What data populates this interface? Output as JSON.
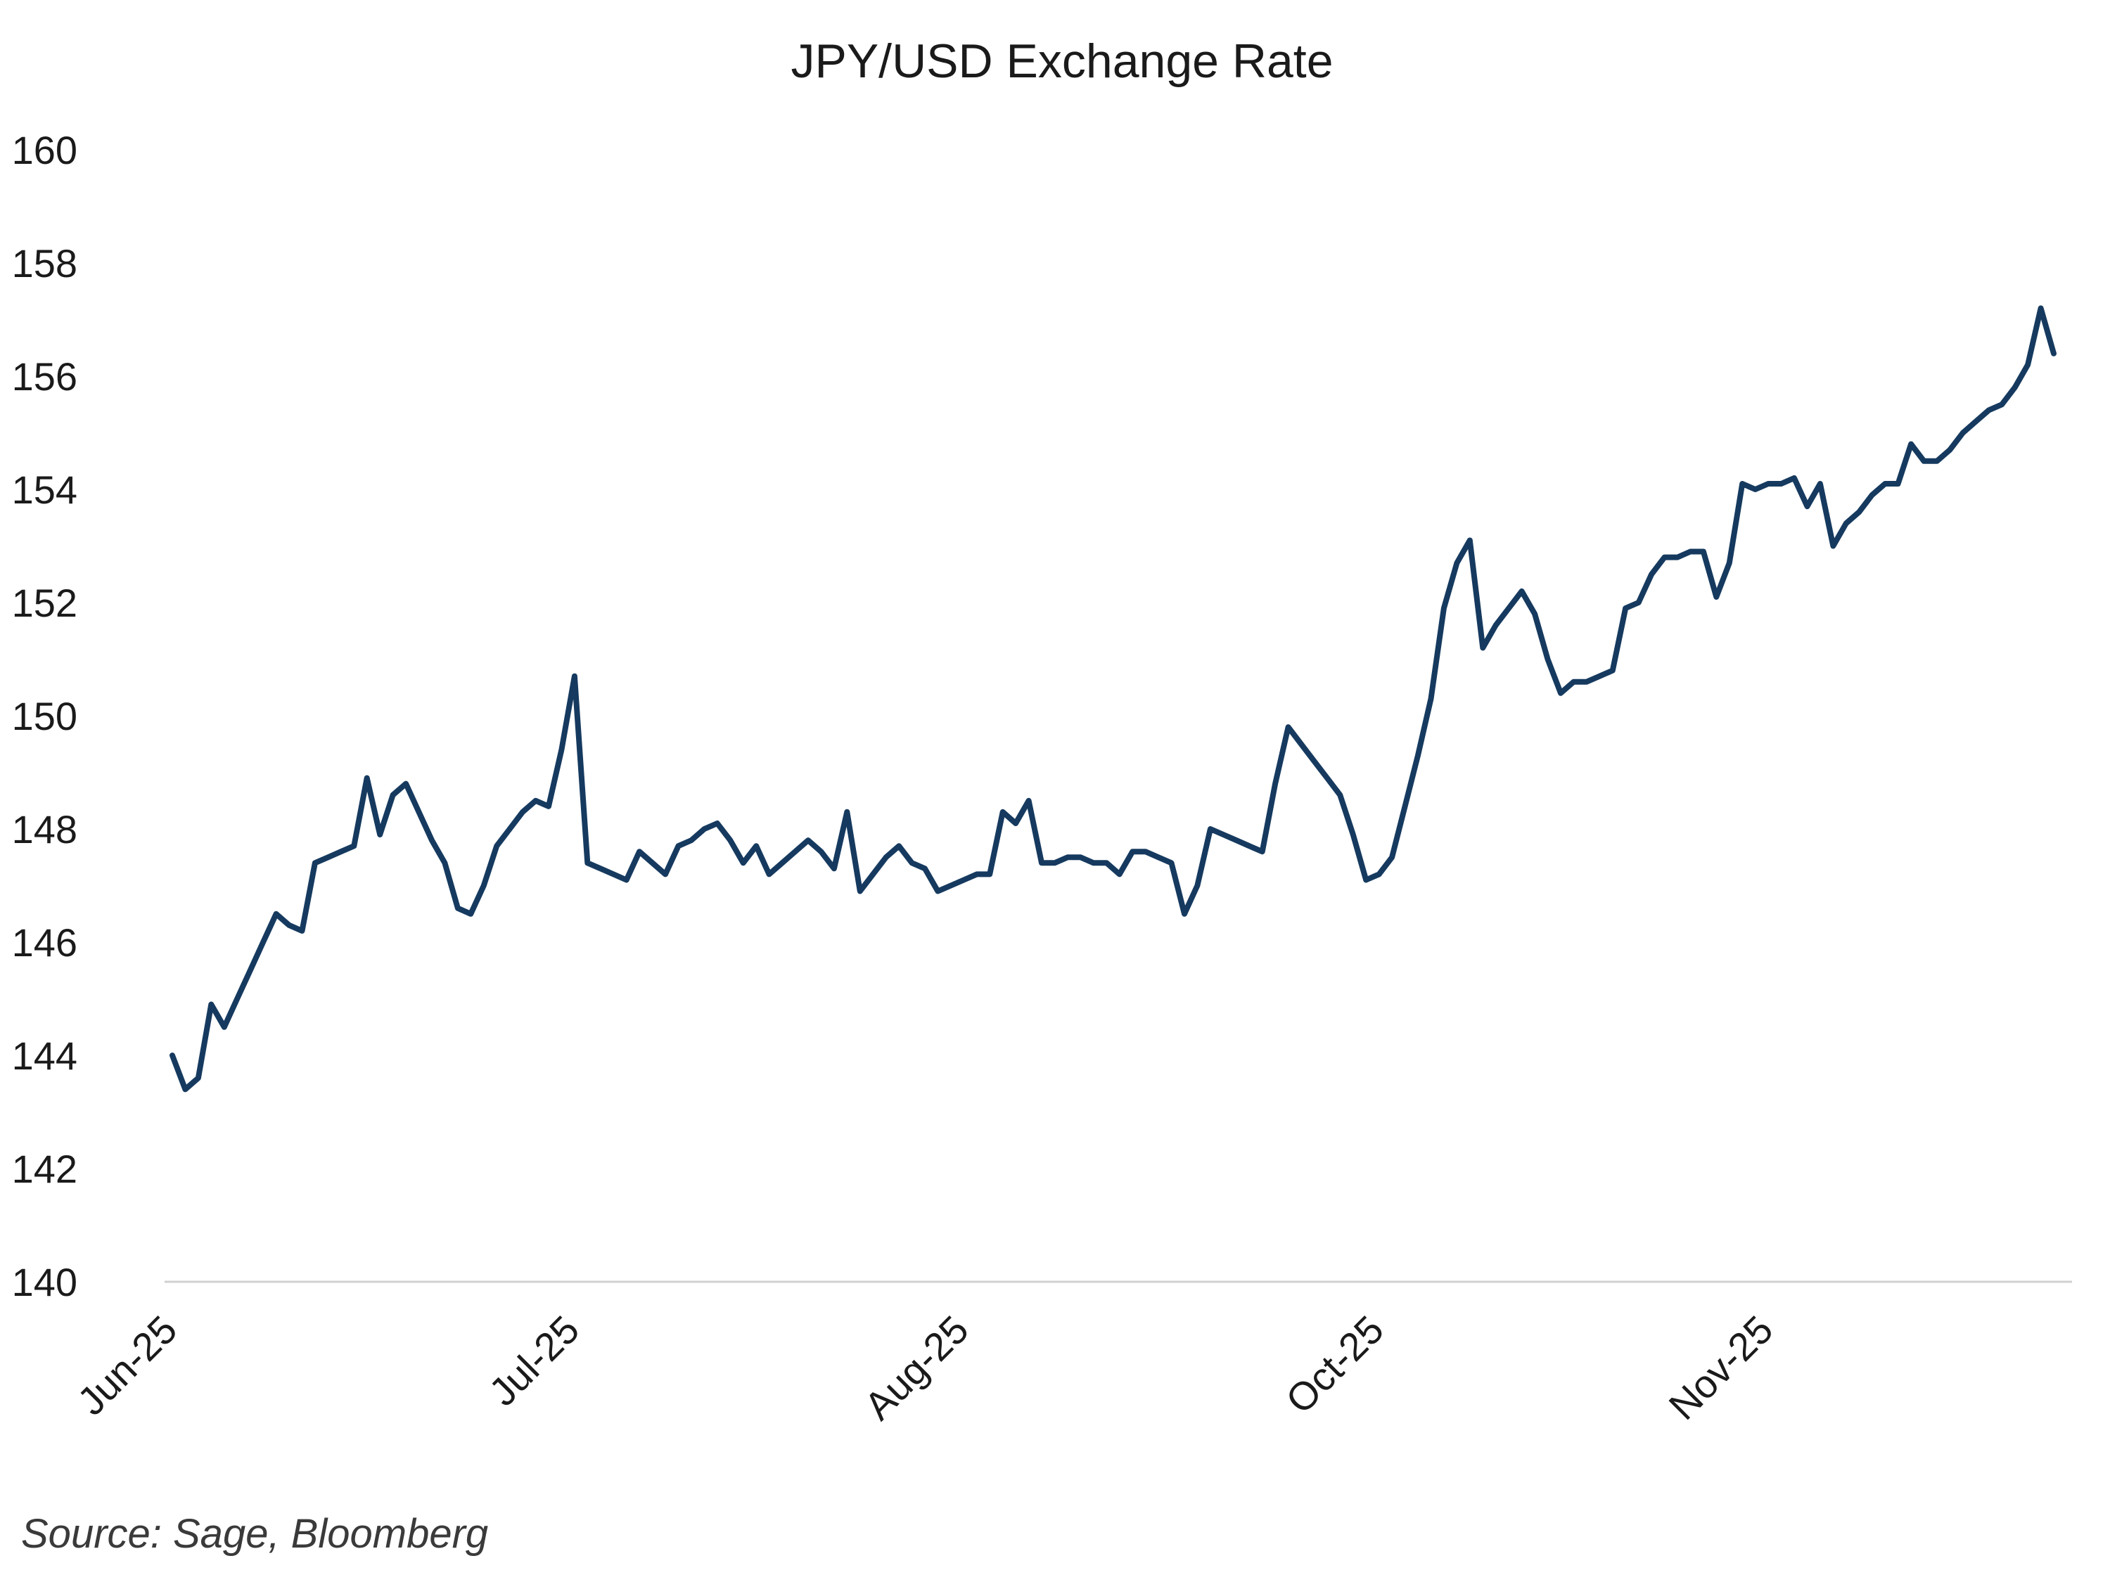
{
  "chart_data": {
    "type": "line",
    "title": "JPY/USD Exchange Rate",
    "xlabel": "",
    "ylabel": "",
    "ylim": [
      140,
      160
    ],
    "yticks": [
      "140",
      "142",
      "144",
      "146",
      "148",
      "150",
      "152",
      "154",
      "156",
      "158",
      "160"
    ],
    "grid": false,
    "legend": "none",
    "x_tick_labels": [
      {
        "label": "Jun-25",
        "index": 0
      },
      {
        "label": "Jul-25",
        "index": 31
      },
      {
        "label": "Aug-25",
        "index": 61
      },
      {
        "label": "Oct-25",
        "index": 93
      },
      {
        "label": "Nov-25",
        "index": 123
      }
    ],
    "x_count": 146,
    "series": [
      {
        "name": "JPY/USD",
        "color": "#163a5f",
        "points": [
          [
            0,
            144.0
          ],
          [
            1,
            143.4
          ],
          [
            2,
            143.6
          ],
          [
            3,
            144.9
          ],
          [
            4,
            144.5
          ],
          [
            5,
            145.0
          ],
          [
            6,
            145.5
          ],
          [
            7,
            146.0
          ],
          [
            8,
            146.5
          ],
          [
            9,
            146.3
          ],
          [
            10,
            146.2
          ],
          [
            11,
            147.4
          ],
          [
            12,
            147.5
          ],
          [
            13,
            147.6
          ],
          [
            14,
            147.7
          ],
          [
            15,
            148.9
          ],
          [
            16,
            147.9
          ],
          [
            17,
            148.6
          ],
          [
            18,
            148.8
          ],
          [
            19,
            148.3
          ],
          [
            20,
            147.8
          ],
          [
            21,
            147.4
          ],
          [
            22,
            146.6
          ],
          [
            23,
            146.5
          ],
          [
            24,
            147.0
          ],
          [
            25,
            147.7
          ],
          [
            26,
            148.0
          ],
          [
            27,
            148.3
          ],
          [
            28,
            148.5
          ],
          [
            29,
            148.4
          ],
          [
            30,
            149.4
          ],
          [
            31,
            150.7
          ],
          [
            32,
            147.4
          ],
          [
            33,
            147.3
          ],
          [
            34,
            147.2
          ],
          [
            35,
            147.1
          ],
          [
            36,
            147.6
          ],
          [
            37,
            147.4
          ],
          [
            38,
            147.2
          ],
          [
            39,
            147.7
          ],
          [
            40,
            147.8
          ],
          [
            41,
            148.0
          ],
          [
            42,
            148.1
          ],
          [
            43,
            147.8
          ],
          [
            44,
            147.4
          ],
          [
            45,
            147.7
          ],
          [
            46,
            147.2
          ],
          [
            47,
            147.4
          ],
          [
            48,
            147.6
          ],
          [
            49,
            147.8
          ],
          [
            50,
            147.6
          ],
          [
            51,
            147.3
          ],
          [
            52,
            148.3
          ],
          [
            53,
            146.9
          ],
          [
            54,
            147.2
          ],
          [
            55,
            147.5
          ],
          [
            56,
            147.7
          ],
          [
            57,
            147.4
          ],
          [
            58,
            147.3
          ],
          [
            59,
            146.9
          ],
          [
            60,
            147.0
          ],
          [
            61,
            147.1
          ],
          [
            62,
            147.2
          ],
          [
            63,
            147.2
          ],
          [
            64,
            148.3
          ],
          [
            65,
            148.1
          ],
          [
            66,
            148.5
          ],
          [
            67,
            147.4
          ],
          [
            68,
            147.4
          ],
          [
            69,
            147.5
          ],
          [
            70,
            147.5
          ],
          [
            71,
            147.4
          ],
          [
            72,
            147.4
          ],
          [
            73,
            147.2
          ],
          [
            74,
            147.6
          ],
          [
            75,
            147.6
          ],
          [
            76,
            147.5
          ],
          [
            77,
            147.4
          ],
          [
            78,
            146.5
          ],
          [
            79,
            147.0
          ],
          [
            80,
            148.0
          ],
          [
            81,
            147.9
          ],
          [
            82,
            147.8
          ],
          [
            83,
            147.7
          ],
          [
            84,
            147.6
          ],
          [
            85,
            148.8
          ],
          [
            86,
            149.8
          ],
          [
            87,
            149.5
          ],
          [
            88,
            149.2
          ],
          [
            89,
            148.9
          ],
          [
            90,
            148.6
          ],
          [
            91,
            147.9
          ],
          [
            92,
            147.1
          ],
          [
            93,
            147.2
          ],
          [
            94,
            147.5
          ],
          [
            95,
            148.4
          ],
          [
            96,
            149.3
          ],
          [
            97,
            150.3
          ],
          [
            98,
            151.9
          ],
          [
            99,
            152.7
          ],
          [
            100,
            153.1
          ],
          [
            101,
            151.2
          ],
          [
            102,
            151.6
          ],
          [
            103,
            151.9
          ],
          [
            104,
            152.2
          ],
          [
            105,
            151.8
          ],
          [
            106,
            151.0
          ],
          [
            107,
            150.4
          ],
          [
            108,
            150.6
          ],
          [
            109,
            150.6
          ],
          [
            110,
            150.7
          ],
          [
            111,
            150.8
          ],
          [
            112,
            151.9
          ],
          [
            113,
            152.0
          ],
          [
            114,
            152.5
          ],
          [
            115,
            152.8
          ],
          [
            116,
            152.8
          ],
          [
            117,
            152.9
          ],
          [
            118,
            152.9
          ],
          [
            119,
            152.1
          ],
          [
            120,
            152.7
          ],
          [
            121,
            154.1
          ],
          [
            122,
            154.0
          ],
          [
            123,
            154.1
          ],
          [
            124,
            154.1
          ],
          [
            125,
            154.2
          ],
          [
            126,
            153.7
          ],
          [
            127,
            154.1
          ],
          [
            128,
            153.0
          ],
          [
            129,
            153.4
          ],
          [
            130,
            153.6
          ],
          [
            131,
            153.9
          ],
          [
            132,
            154.1
          ],
          [
            133,
            154.1
          ],
          [
            134,
            154.8
          ],
          [
            135,
            154.5
          ],
          [
            136,
            154.5
          ],
          [
            137,
            154.7
          ],
          [
            138,
            155.0
          ],
          [
            139,
            155.2
          ],
          [
            140,
            155.4
          ],
          [
            141,
            155.5
          ],
          [
            142,
            155.8
          ],
          [
            143,
            156.2
          ],
          [
            144,
            157.2
          ],
          [
            145,
            156.4
          ]
        ]
      }
    ]
  },
  "source_note": "Source: Sage, Bloomberg"
}
